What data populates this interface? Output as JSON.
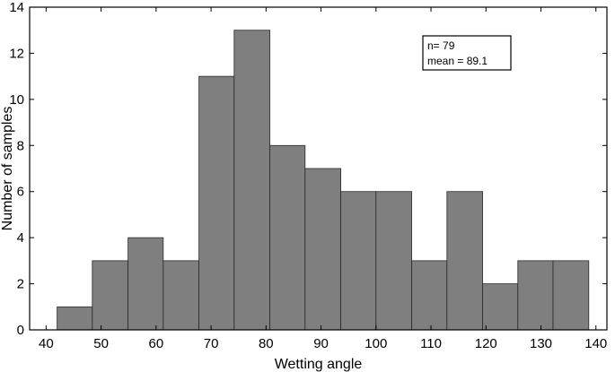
{
  "chart_data": {
    "type": "bar",
    "subtype": "histogram",
    "xlabel": "Wetting angle",
    "ylabel": "Number of samples",
    "xlim": [
      37,
      142
    ],
    "ylim": [
      0,
      14
    ],
    "xticks": [
      40,
      50,
      60,
      70,
      80,
      90,
      100,
      110,
      120,
      130,
      140
    ],
    "yticks": [
      0,
      2,
      4,
      6,
      8,
      10,
      12,
      14
    ],
    "grid": false,
    "bins": [
      {
        "start": 42.0,
        "end": 48.4,
        "value": 1
      },
      {
        "start": 48.4,
        "end": 54.9,
        "value": 3
      },
      {
        "start": 54.9,
        "end": 61.3,
        "value": 4
      },
      {
        "start": 61.3,
        "end": 67.8,
        "value": 3
      },
      {
        "start": 67.8,
        "end": 74.2,
        "value": 11
      },
      {
        "start": 74.2,
        "end": 80.7,
        "value": 13
      },
      {
        "start": 80.7,
        "end": 87.1,
        "value": 8
      },
      {
        "start": 87.1,
        "end": 93.6,
        "value": 7
      },
      {
        "start": 93.6,
        "end": 100.0,
        "value": 6
      },
      {
        "start": 100.0,
        "end": 106.5,
        "value": 6
      },
      {
        "start": 106.5,
        "end": 112.9,
        "value": 3
      },
      {
        "start": 112.9,
        "end": 119.4,
        "value": 6
      },
      {
        "start": 119.4,
        "end": 125.8,
        "value": 2
      },
      {
        "start": 125.8,
        "end": 132.2,
        "value": 3
      },
      {
        "start": 132.2,
        "end": 138.7,
        "value": 3
      }
    ],
    "annotation": {
      "lines": [
        "n= 79",
        "mean = 89.1"
      ],
      "placement": "top-right"
    },
    "colors": {
      "bar_fill": "#7f7f7f",
      "bar_stroke": "#2a2a2a",
      "axis": "#000000"
    }
  }
}
